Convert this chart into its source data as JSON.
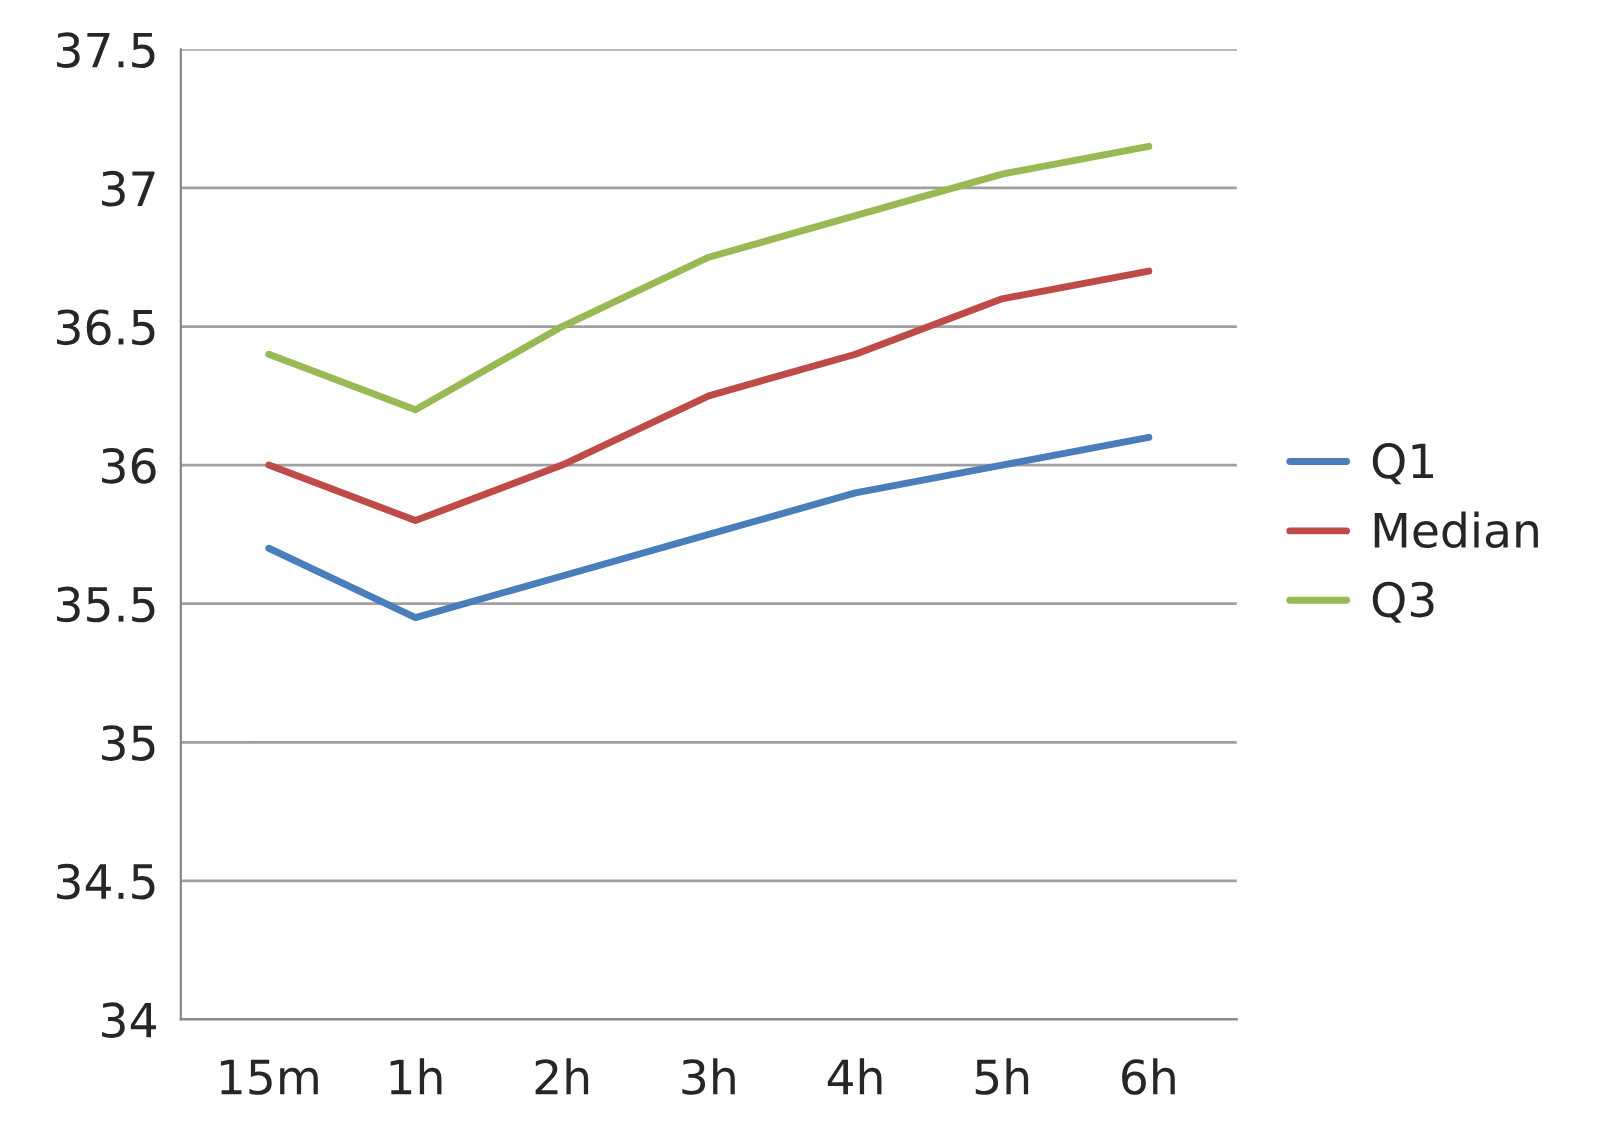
{
  "chart_data": {
    "type": "line",
    "categories": [
      "15m",
      "1h",
      "2h",
      "3h",
      "4h",
      "5h",
      "6h"
    ],
    "series": [
      {
        "name": "Q1",
        "color": "#4a7ebb",
        "values": [
          35.7,
          35.45,
          35.6,
          35.75,
          35.9,
          36.0,
          36.1
        ]
      },
      {
        "name": "Median",
        "color": "#be4b48",
        "values": [
          36.0,
          35.8,
          36.0,
          36.25,
          36.4,
          36.6,
          36.7
        ]
      },
      {
        "name": "Q3",
        "color": "#98b954",
        "values": [
          36.4,
          36.2,
          36.5,
          36.75,
          36.9,
          37.05,
          37.15
        ]
      }
    ],
    "ylim": [
      34,
      37.5
    ],
    "yticks": [
      34,
      34.5,
      35,
      35.5,
      36,
      36.5,
      37,
      37.5
    ],
    "grid": "y",
    "legend": "right",
    "marker": "none",
    "line_style": "solid"
  }
}
